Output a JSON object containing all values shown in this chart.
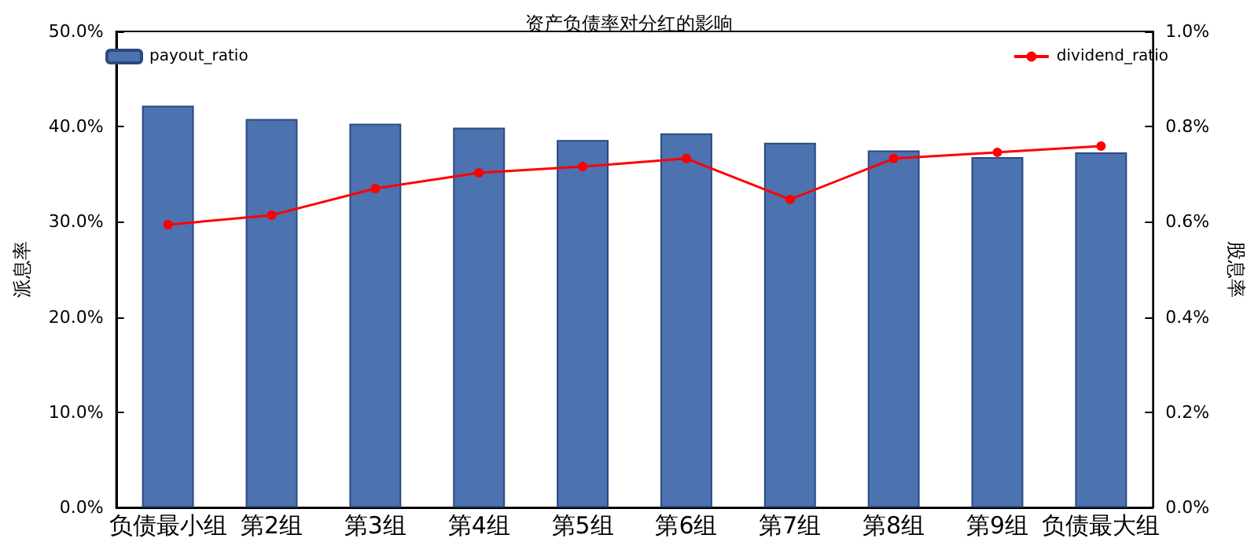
{
  "chart_data": {
    "type": "bar",
    "title": "资产负债率对分红的影响",
    "ylabel": "派息率",
    "y2label": "股息率",
    "categories": [
      "负债最小组",
      "第2组",
      "第3组",
      "第4组",
      "第5组",
      "第6组",
      "第7组",
      "第8组",
      "第9组",
      "负债最大组"
    ],
    "series": [
      {
        "name": "payout_ratio",
        "color": "#4c72b0",
        "values": [
          42.2,
          40.8,
          40.3,
          39.9,
          38.6,
          39.3,
          38.3,
          37.5,
          36.8,
          37.3
        ]
      },
      {
        "name": "dividend_ratio",
        "type": "line",
        "axis": "y2",
        "color": "#ff0000",
        "marker": "circle",
        "values": [
          0.594,
          0.614,
          0.67,
          0.703,
          0.716,
          0.733,
          0.647,
          0.733,
          0.746,
          0.759
        ]
      }
    ],
    "ylim": [
      0,
      50
    ],
    "yticks": [
      {
        "value": 0,
        "label": "0.0%"
      },
      {
        "value": 10,
        "label": "10.0%"
      },
      {
        "value": 20,
        "label": "20.0%"
      },
      {
        "value": 30,
        "label": "30.0%"
      },
      {
        "value": 40,
        "label": "40.0%"
      },
      {
        "value": 50,
        "label": "50.0%"
      }
    ],
    "y2lim": [
      0,
      1
    ],
    "y2ticks": [
      {
        "value": 0,
        "label": "0.0%"
      },
      {
        "value": 0.2,
        "label": "0.2%"
      },
      {
        "value": 0.4,
        "label": "0.4%"
      },
      {
        "value": 0.6,
        "label": "0.6%"
      },
      {
        "value": 0.8,
        "label": "0.8%"
      },
      {
        "value": 1,
        "label": "1.0%"
      }
    ],
    "legend": "top",
    "grid": false
  }
}
